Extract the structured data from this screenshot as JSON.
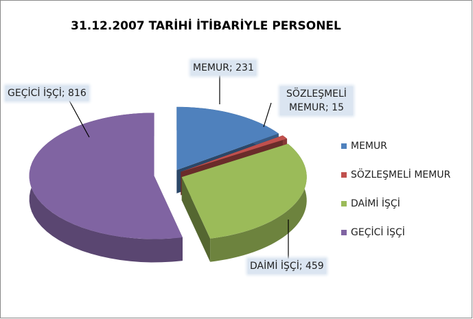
{
  "chart_data": {
    "type": "pie3d",
    "title": "31.12.2007 TARİHİ İTİBARİYLE PERSONEL",
    "categories": [
      "MEMUR",
      "SÖZLEŞMELİ MEMUR",
      "DAİMİ İŞÇİ",
      "GEÇİCİ İŞÇİ"
    ],
    "values": [
      231,
      15,
      459,
      816
    ],
    "value_labels": [
      "MEMUR; 231",
      "SÖZLEŞMELİ MEMUR; 15",
      "DAİMİ İŞÇİ; 459",
      "GEÇİCİ İŞÇİ; 816"
    ],
    "colors": [
      "#4f81bd",
      "#c0504d",
      "#9bbb59",
      "#8064a2"
    ],
    "legend": "right"
  }
}
